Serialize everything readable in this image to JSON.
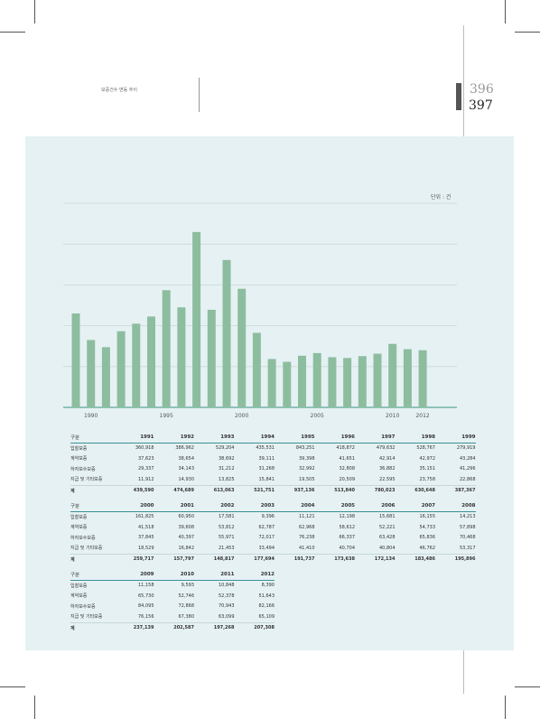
{
  "header": {
    "caption": "보증건수 변동 추이",
    "page_left": "396",
    "page_right": "397"
  },
  "colors": {
    "bar": "#8dbd9f",
    "panel": "#e6f1f3",
    "header_rule": "#3a8f97"
  },
  "chart_data": {
    "type": "bar",
    "unit_label": "단위 : 건",
    "x_tick_labels": [
      "1990",
      "1995",
      "2000",
      "2005",
      "2010",
      "2012"
    ],
    "categories": [
      "1989",
      "1990",
      "1991",
      "1992",
      "1993",
      "1994",
      "1995",
      "1996",
      "1997",
      "1998",
      "1999",
      "2000",
      "2001",
      "2002",
      "2003",
      "2004",
      "2005",
      "2006",
      "2007",
      "2008",
      "2009",
      "2010",
      "2011",
      "2012"
    ],
    "values": [
      460000,
      330000,
      295000,
      373000,
      410000,
      445000,
      574000,
      490000,
      859000,
      478000,
      722000,
      581000,
      365000,
      237000,
      223000,
      253000,
      266000,
      246000,
      242000,
      251000,
      263000,
      311000,
      285000,
      280000
    ],
    "ylim": [
      0,
      1000000
    ],
    "grid": true
  },
  "tables": [
    {
      "header": [
        "구분",
        "1991",
        "1992",
        "1993",
        "1994",
        "1995",
        "1996",
        "1997",
        "1998",
        "1999"
      ],
      "rows": [
        [
          "입찰보증",
          "360,918",
          "386,962",
          "529,204",
          "435,531",
          "843,251",
          "418,872",
          "479,632",
          "528,767",
          "279,919"
        ],
        [
          "계약보증",
          "37,623",
          "38,654",
          "38,692",
          "39,111",
          "39,398",
          "41,651",
          "42,914",
          "42,972",
          "43,284"
        ],
        [
          "하자보수보증",
          "29,337",
          "34,143",
          "31,212",
          "31,268",
          "32,992",
          "32,808",
          "36,882",
          "35,151",
          "41,296"
        ],
        [
          "지급 및 기타보증",
          "11,912",
          "14,930",
          "13,825",
          "15,841",
          "19,505",
          "20,509",
          "22,595",
          "23,758",
          "22,868"
        ],
        [
          "계",
          "439,590",
          "474,689",
          "613,063",
          "521,751",
          "937,136",
          "513,840",
          "780,023",
          "630,648",
          "387,367"
        ]
      ]
    },
    {
      "header": [
        "구분",
        "2000",
        "2001",
        "2002",
        "2003",
        "2004",
        "2005",
        "2006",
        "2007",
        "2008"
      ],
      "rows": [
        [
          "입찰보증",
          "161,825",
          "60,950",
          "17,581",
          "9,396",
          "11,121",
          "12,198",
          "15,681",
          "16,155",
          "14,213"
        ],
        [
          "계약보증",
          "41,518",
          "39,608",
          "53,812",
          "62,787",
          "62,968",
          "58,612",
          "52,221",
          "54,733",
          "57,898"
        ],
        [
          "하자보수보증",
          "37,845",
          "40,397",
          "55,971",
          "72,017",
          "76,238",
          "66,337",
          "63,428",
          "65,836",
          "70,468"
        ],
        [
          "지급 및 기타보증",
          "18,529",
          "16,842",
          "21,453",
          "33,494",
          "41,410",
          "40,704",
          "40,804",
          "46,762",
          "53,317"
        ],
        [
          "계",
          "259,717",
          "157,797",
          "148,817",
          "177,694",
          "191,737",
          "173,638",
          "172,134",
          "183,486",
          "195,896"
        ]
      ]
    },
    {
      "header": [
        "구분",
        "2009",
        "2010",
        "2011",
        "2012"
      ],
      "rows": [
        [
          "입찰보증",
          "11,158",
          "9,593",
          "10,848",
          "8,390"
        ],
        [
          "계약보증",
          "65,730",
          "52,746",
          "52,378",
          "51,643"
        ],
        [
          "하자보수보증",
          "84,095",
          "72,868",
          "70,943",
          "82,166"
        ],
        [
          "지급 및 기타보증",
          "76,156",
          "67,380",
          "63,099",
          "65,109"
        ],
        [
          "계",
          "237,139",
          "202,587",
          "197,268",
          "207,308"
        ]
      ]
    }
  ]
}
